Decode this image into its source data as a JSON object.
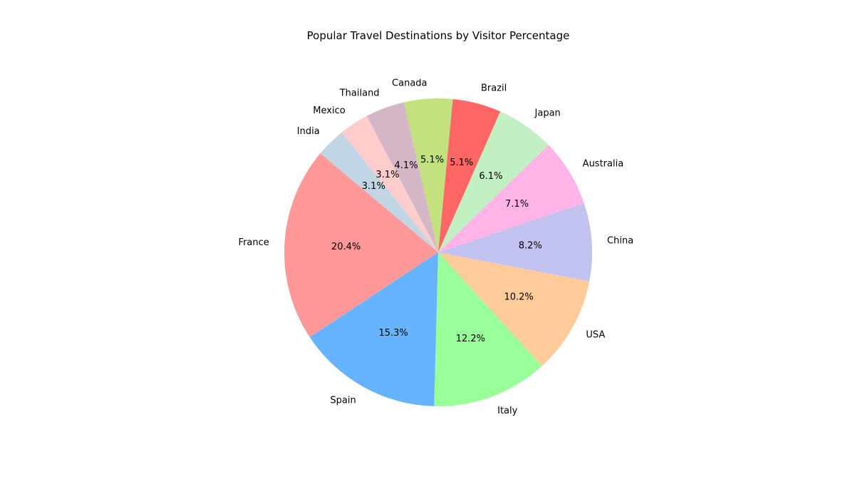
{
  "chart_data": {
    "type": "pie",
    "title": "Popular Travel Destinations by Visitor Percentage",
    "start_angle_deg": 140,
    "direction": "counterclockwise",
    "slices": [
      {
        "label": "France",
        "value": 20.4,
        "pct_label": "20.4%",
        "color": "#ff9999"
      },
      {
        "label": "Spain",
        "value": 15.3,
        "pct_label": "15.3%",
        "color": "#66b3ff"
      },
      {
        "label": "Italy",
        "value": 12.2,
        "pct_label": "12.2%",
        "color": "#99ff99"
      },
      {
        "label": "USA",
        "value": 10.2,
        "pct_label": "10.2%",
        "color": "#ffcc99"
      },
      {
        "label": "China",
        "value": 8.2,
        "pct_label": "8.2%",
        "color": "#c2c2f0"
      },
      {
        "label": "Australia",
        "value": 7.1,
        "pct_label": "7.1%",
        "color": "#ffb3e6"
      },
      {
        "label": "Japan",
        "value": 6.1,
        "pct_label": "6.1%",
        "color": "#c2f0c2"
      },
      {
        "label": "Brazil",
        "value": 5.1,
        "pct_label": "5.1%",
        "color": "#ff6666"
      },
      {
        "label": "Canada",
        "value": 5.1,
        "pct_label": "5.1%",
        "color": "#c4e17f"
      },
      {
        "label": "Thailand",
        "value": 4.1,
        "pct_label": "4.1%",
        "color": "#d4b6c6"
      },
      {
        "label": "Mexico",
        "value": 3.1,
        "pct_label": "3.1%",
        "color": "#ffcccc"
      },
      {
        "label": "India",
        "value": 3.1,
        "pct_label": "3.1%",
        "color": "#c0d6e4"
      }
    ]
  }
}
